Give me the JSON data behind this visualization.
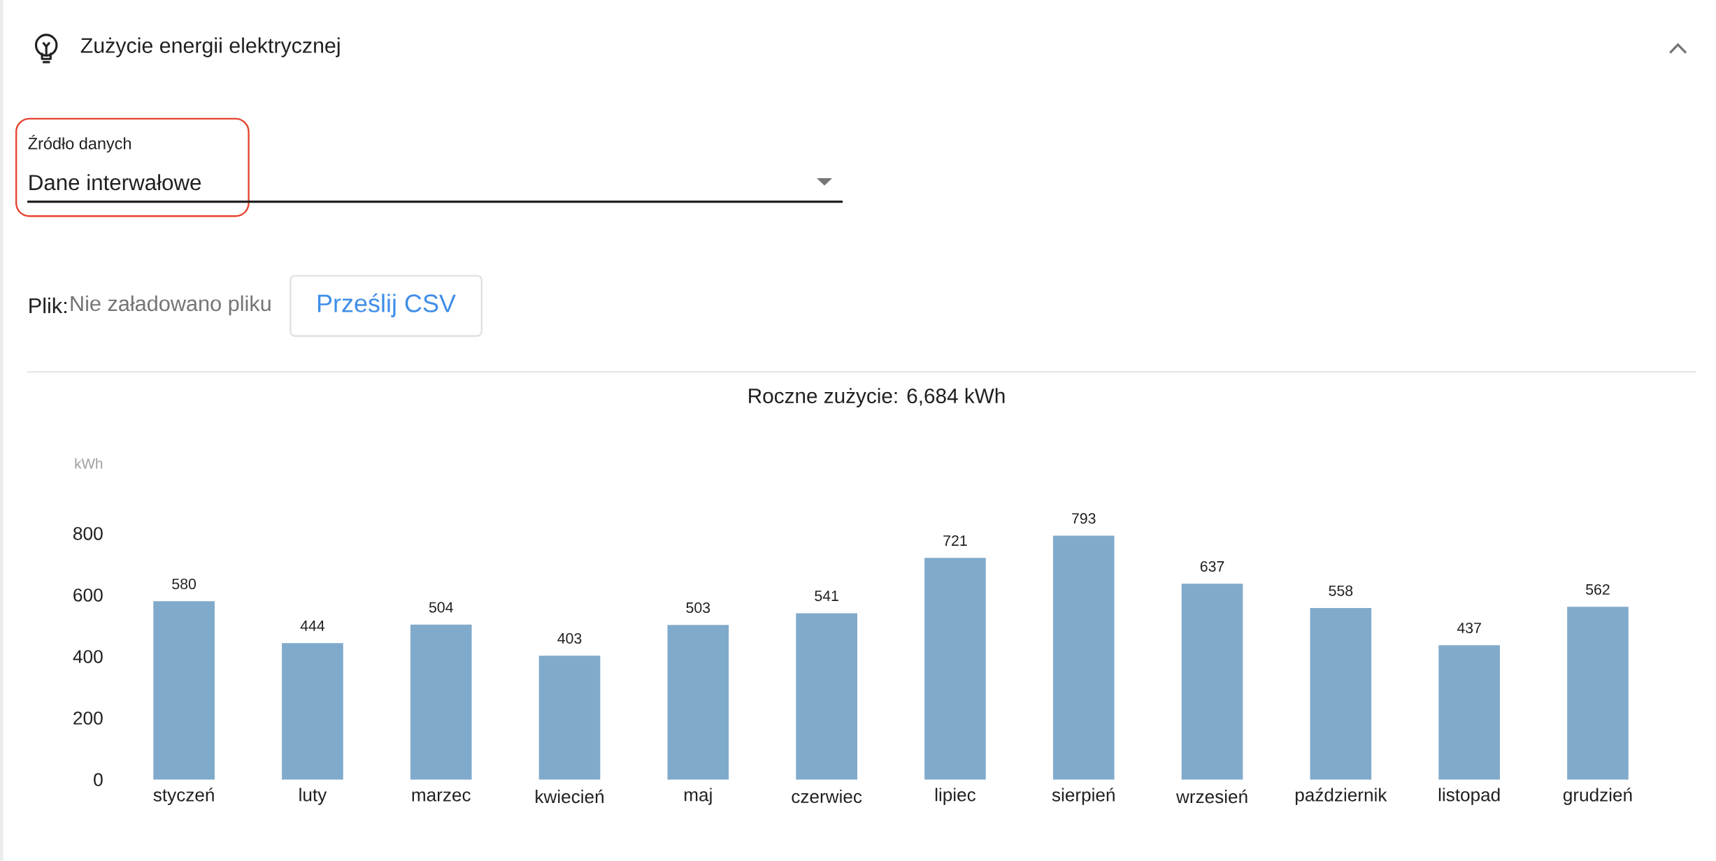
{
  "chart_data": {
    "type": "bar",
    "title": "Zużycie energii elektrycznej",
    "subtitle": "Roczne zużycie: 6,684 kWh",
    "ylabel": "kWh",
    "categories": [
      "styczeń",
      "luty",
      "marzec",
      "kwiecień",
      "maj",
      "czerwiec",
      "lipiec",
      "sierpień",
      "wrzesień",
      "październik",
      "listopad",
      "grudzień"
    ],
    "values": [
      580,
      444,
      504,
      403,
      503,
      541,
      721,
      793,
      637,
      558,
      437,
      562
    ],
    "color": "#80aacb",
    "ylim": [
      0,
      800
    ],
    "yticks": [
      0,
      200,
      400,
      600,
      800
    ],
    "data_labels": true,
    "annotations": [
      "Źródło danych",
      "Dane interwałowe",
      "Plik:",
      "Nie załadowano pliku",
      "Prześlij CSV"
    ]
  }
}
